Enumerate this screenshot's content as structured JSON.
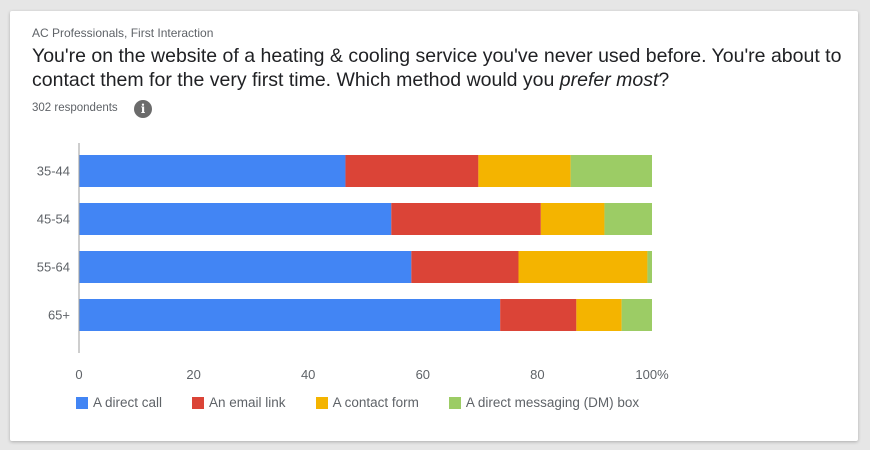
{
  "header": {
    "eyebrow": "AC Professionals, First Interaction",
    "question_part1": "You're on the website of a heating & cooling service you've never used before. You're about to contact them for the very first time. Which method would you ",
    "question_emph": "prefer most",
    "question_part2": "?",
    "respondents": "302 respondents",
    "info_icon_glyph": "i"
  },
  "chart_data": {
    "type": "bar",
    "orientation": "horizontal",
    "stacked": true,
    "categories": [
      "35-44",
      "45-54",
      "55-64",
      "65+"
    ],
    "series": [
      {
        "name": "A direct call",
        "color": "#4285f4",
        "values": [
          46.5,
          54.5,
          58,
          73.5
        ]
      },
      {
        "name": "An email link",
        "color": "#db4437",
        "values": [
          23.2,
          26.1,
          18.7,
          13.3
        ]
      },
      {
        "name": "A contact form",
        "color": "#f4b400",
        "values": [
          16.1,
          11.1,
          22.5,
          7.9
        ]
      },
      {
        "name": "A direct messaging (DM) box",
        "color": "#9ccc65",
        "values": [
          14.2,
          8.3,
          0.8,
          5.3
        ]
      }
    ],
    "xlim": [
      0,
      100
    ],
    "xticks": [
      "0",
      "20",
      "40",
      "60",
      "80",
      "100%"
    ],
    "grid": false,
    "legend_position": "bottom"
  }
}
